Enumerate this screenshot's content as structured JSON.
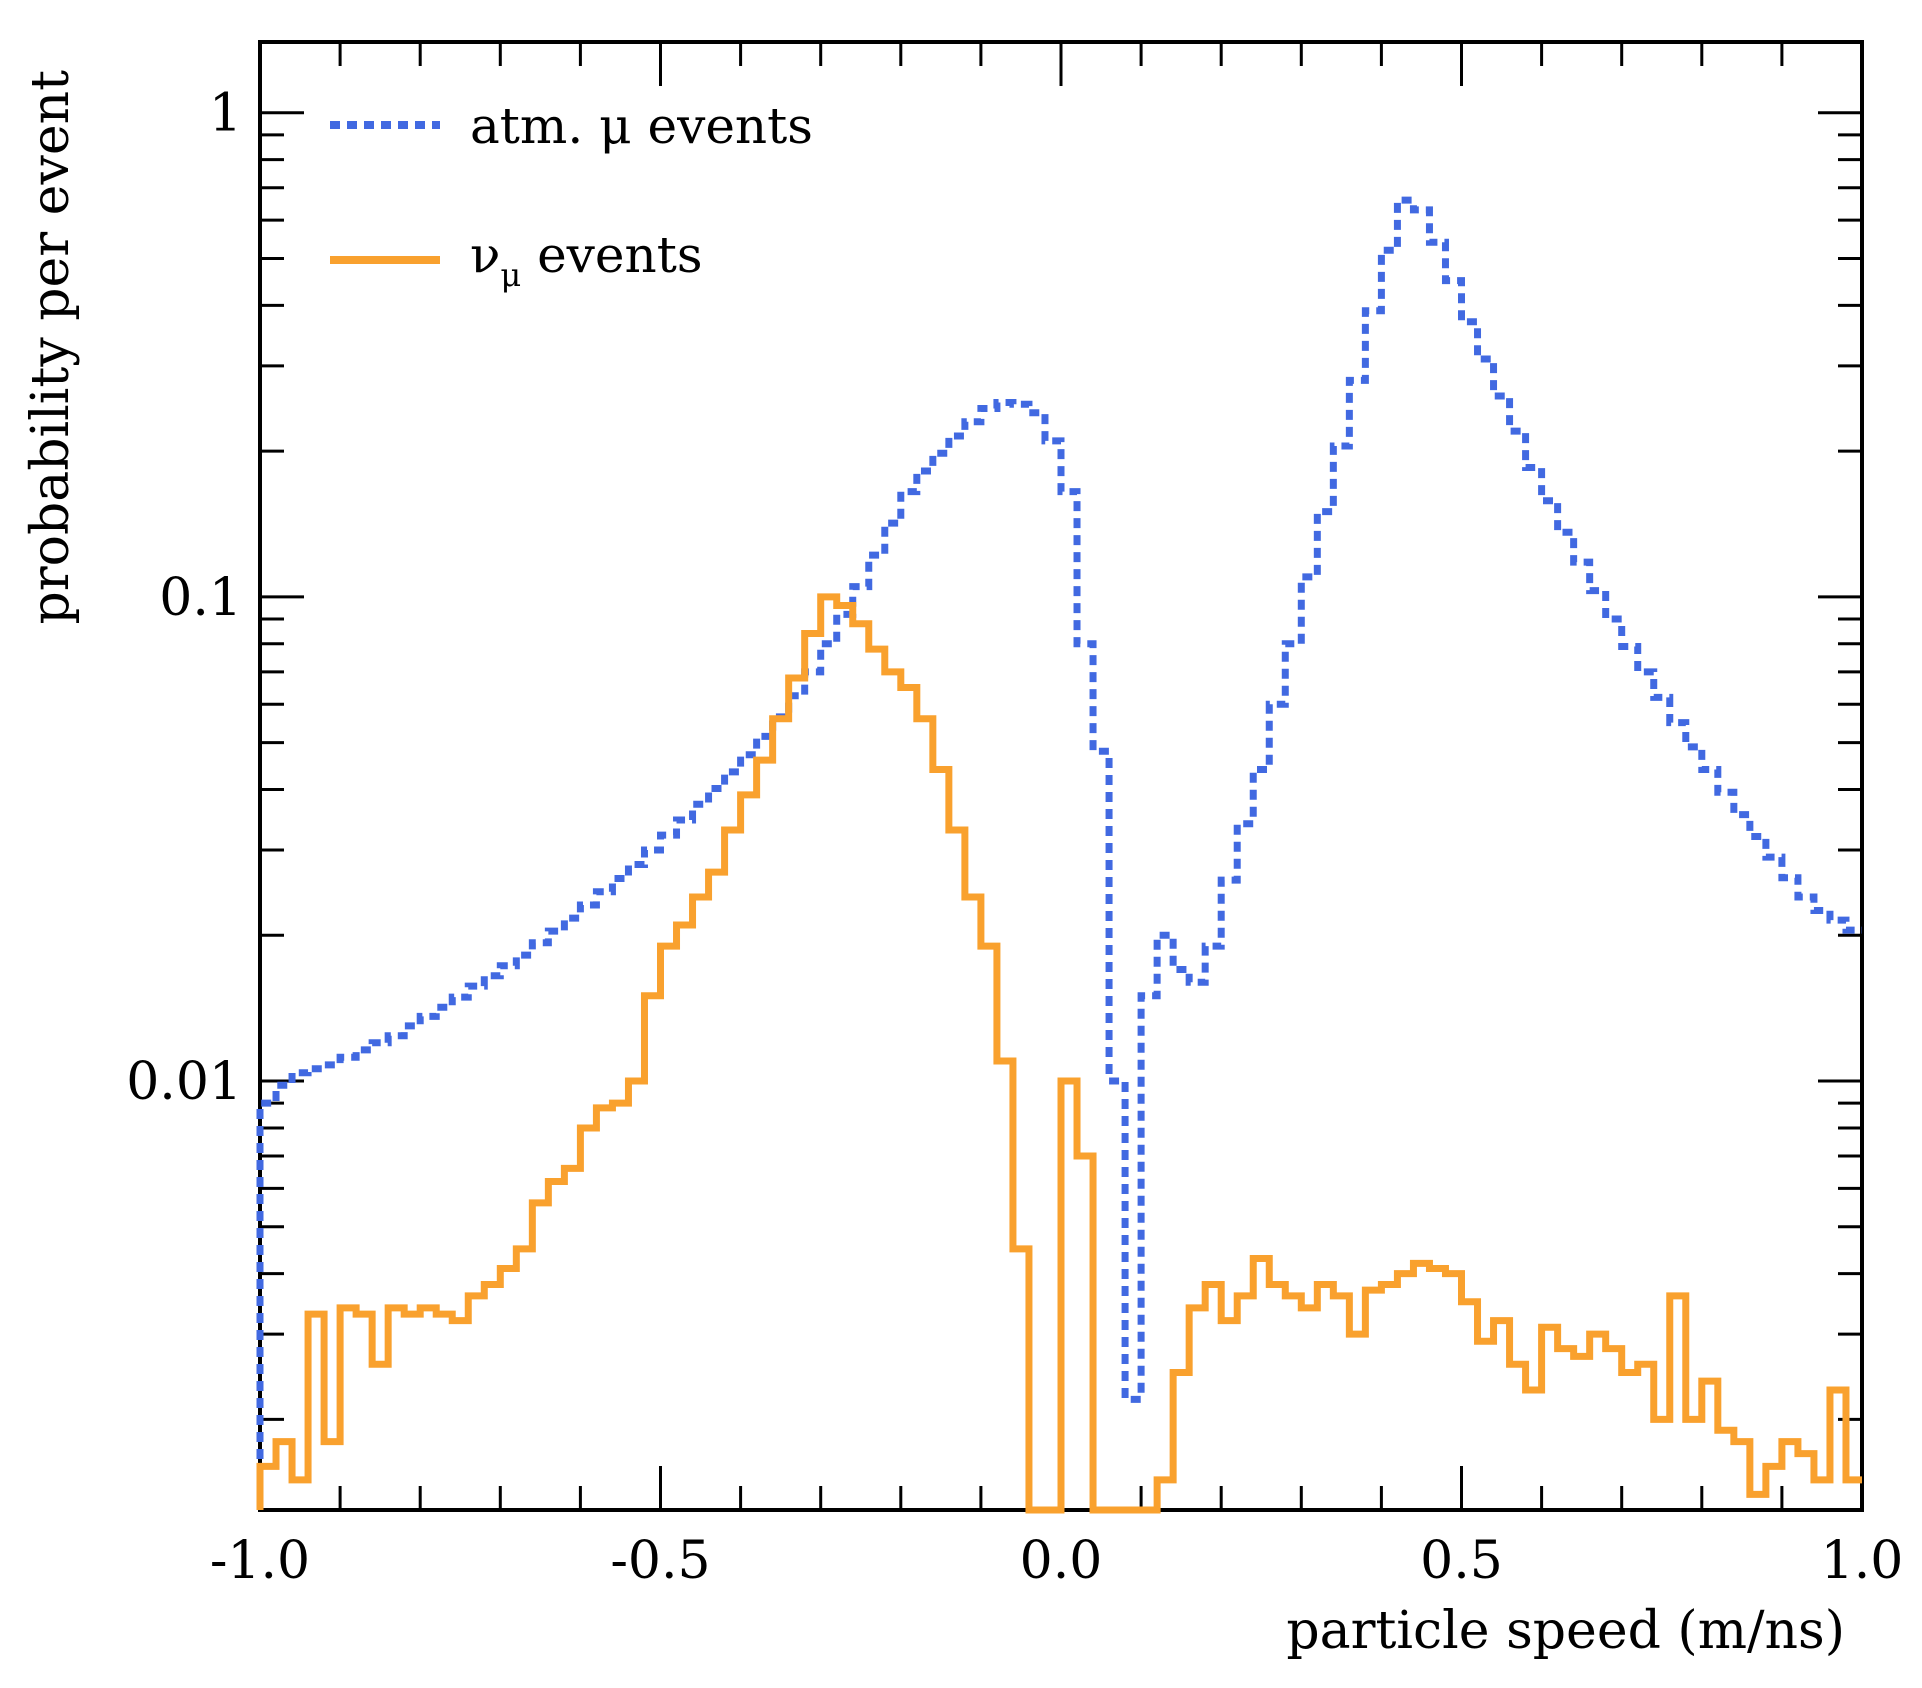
{
  "chart_data": {
    "type": "line",
    "title": "",
    "xlabel": "particle speed (m/ns)",
    "ylabel": "probability per event",
    "xlim": [
      -1.0,
      1.0
    ],
    "ylim": [
      0.0013,
      1.4
    ],
    "yscale": "log",
    "grid": false,
    "legend_position": "top-left",
    "x_ticks": [
      "-1.0",
      "-0.5",
      "0.0",
      "0.5",
      "1.0"
    ],
    "y_ticks": [
      "0.01",
      "0.1",
      "1"
    ],
    "series": [
      {
        "name": "atm. μ events",
        "name_main": "atm. μ events",
        "style": "dotted",
        "color": "#4169e1",
        "bin_width": 0.02,
        "x_start": -1.0,
        "values": [
          0.009,
          0.0098,
          0.0104,
          0.0106,
          0.0108,
          0.0112,
          0.0116,
          0.012,
          0.0124,
          0.013,
          0.0136,
          0.0142,
          0.0149,
          0.0157,
          0.0165,
          0.0173,
          0.0182,
          0.0193,
          0.0204,
          0.0217,
          0.0231,
          0.0246,
          0.0262,
          0.028,
          0.03,
          0.0322,
          0.0346,
          0.0373,
          0.0402,
          0.0435,
          0.0472,
          0.0515,
          0.0565,
          0.0625,
          0.07,
          0.08,
          0.092,
          0.105,
          0.122,
          0.142,
          0.165,
          0.182,
          0.198,
          0.215,
          0.23,
          0.245,
          0.252,
          0.25,
          0.24,
          0.21,
          0.165,
          0.08,
          0.048,
          0.01,
          0.0022,
          0.015,
          0.02,
          0.017,
          0.016,
          0.019,
          0.026,
          0.034,
          0.044,
          0.06,
          0.08,
          0.11,
          0.15,
          0.205,
          0.28,
          0.39,
          0.52,
          0.66,
          0.63,
          0.54,
          0.45,
          0.37,
          0.31,
          0.26,
          0.22,
          0.185,
          0.158,
          0.136,
          0.118,
          0.103,
          0.09,
          0.079,
          0.07,
          0.062,
          0.055,
          0.049,
          0.044,
          0.0395,
          0.0355,
          0.032,
          0.029,
          0.0263,
          0.024,
          0.0225,
          0.0215,
          0.0205
        ]
      },
      {
        "name": "ν_μ events",
        "name_main": "ν",
        "name_sub": "μ",
        "name_rest": " events",
        "style": "solid",
        "color": "#f9a12e",
        "bin_width": 0.02,
        "x_start": -1.0,
        "values": [
          0.0016,
          0.0018,
          0.0015,
          0.0033,
          0.0018,
          0.0034,
          0.0033,
          0.0026,
          0.0034,
          0.0033,
          0.0034,
          0.0033,
          0.0032,
          0.0036,
          0.0038,
          0.0041,
          0.0045,
          0.0056,
          0.0062,
          0.0066,
          0.008,
          0.0088,
          0.009,
          0.01,
          0.015,
          0.019,
          0.021,
          0.024,
          0.027,
          0.033,
          0.039,
          0.046,
          0.056,
          0.068,
          0.084,
          0.1,
          0.096,
          0.088,
          0.078,
          0.07,
          0.065,
          0.056,
          0.044,
          0.033,
          0.024,
          0.019,
          0.011,
          0.0045,
          0.0012,
          0.0012,
          0.01,
          0.007,
          0.0012,
          0.0012,
          0.0012,
          0.0012,
          0.0015,
          0.0025,
          0.0034,
          0.0038,
          0.0032,
          0.0036,
          0.0043,
          0.0038,
          0.0036,
          0.0034,
          0.0038,
          0.0036,
          0.003,
          0.0037,
          0.0038,
          0.004,
          0.0042,
          0.0041,
          0.004,
          0.0035,
          0.0029,
          0.0032,
          0.0026,
          0.0023,
          0.0031,
          0.0028,
          0.0027,
          0.003,
          0.0028,
          0.0025,
          0.0026,
          0.002,
          0.0036,
          0.002,
          0.0024,
          0.0019,
          0.0018,
          0.0014,
          0.0016,
          0.0018,
          0.0017,
          0.0015,
          0.0023,
          0.0015
        ]
      }
    ]
  }
}
